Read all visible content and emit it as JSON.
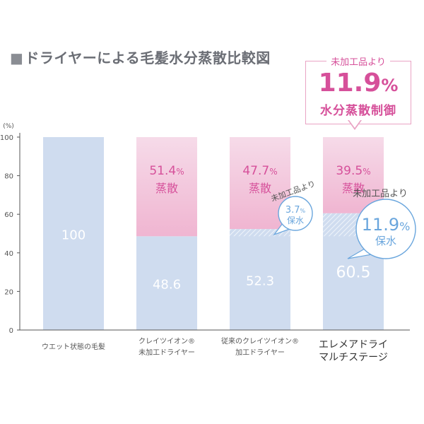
{
  "title_marker": "■",
  "title": "ドライヤーによる毛髪水分蒸散比較図",
  "colors": {
    "retained": "#cfdcef",
    "evaporated_top": "#f6dbe9",
    "evaporated_bottom": "#f0b5d1",
    "pink": "#d6509a",
    "blue": "#6aa6dd",
    "axis": "#555555",
    "grid": "#d8d8d8",
    "text_gray": "#555555"
  },
  "callout_top": {
    "caption": "未加工品より",
    "value": "11.9",
    "unit": "%",
    "text": "水分蒸散制御"
  },
  "chart_data": {
    "type": "bar",
    "stacked": true,
    "yunit": "(%)",
    "ylim": [
      0,
      100
    ],
    "yticks": [
      0,
      20,
      40,
      60,
      80,
      100
    ],
    "grid": false,
    "categories": [
      [
        "ウエット状態の毛髪"
      ],
      [
        "クレイツイオン®",
        "未加工ドライヤー"
      ],
      [
        "従来のクレイツイオン®",
        "加工ドライヤー"
      ],
      [
        "エレメアドライ",
        "マルチステージ"
      ]
    ],
    "series": [
      {
        "values": [
          100,
          48.6,
          52.3,
          60.5
        ]
      },
      {
        "values": [
          0,
          51.4,
          47.7,
          39.5
        ]
      }
    ],
    "value_labels": [
      "100",
      "48.6",
      "52.3",
      "60.5"
    ],
    "evaporation_labels": [
      null,
      "51.4",
      "47.7",
      "39.5"
    ],
    "evaporation_unit": "%",
    "evaporation_word": "蒸散",
    "hatched_gain": [
      {
        "bar": 2,
        "from": 48.6,
        "to": 52.3
      },
      {
        "bar": 3,
        "from": 48.6,
        "to": 60.5
      }
    ],
    "retention_callouts": [
      {
        "bar": 2,
        "caption": "未加工品より",
        "value": "3.7",
        "unit": "%",
        "text": "保水"
      },
      {
        "bar": 3,
        "caption": "未加工品より",
        "value": "11.9",
        "unit": "%",
        "text": "保水"
      }
    ]
  }
}
